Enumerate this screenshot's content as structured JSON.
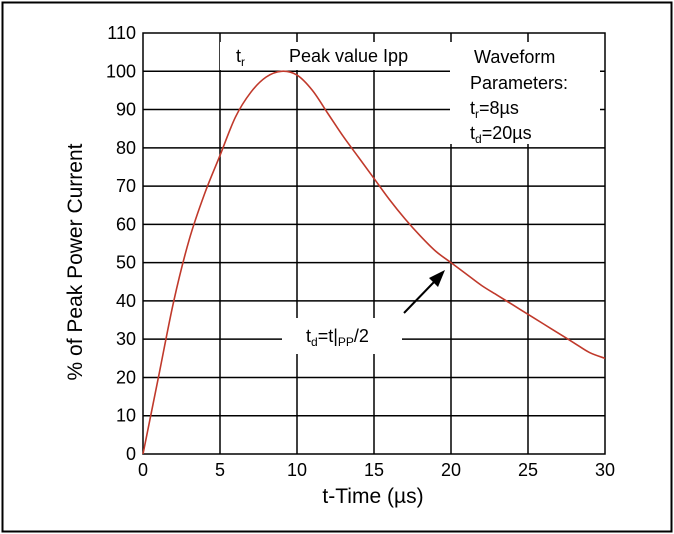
{
  "chart_data": {
    "type": "line",
    "title": "",
    "xlabel": "t-Time (µs)",
    "ylabel": "% of Peak Power Current",
    "xlim": [
      0,
      30
    ],
    "ylim": [
      0,
      110
    ],
    "x_ticks": [
      "0",
      "5",
      "10",
      "15",
      "20",
      "25",
      "30"
    ],
    "y_ticks": [
      "0",
      "10",
      "20",
      "30",
      "40",
      "50",
      "60",
      "70",
      "80",
      "90",
      "100",
      "110"
    ],
    "grid": true,
    "series": [
      {
        "name": "",
        "color": "#c0392b",
        "points": [
          [
            0,
            0
          ],
          [
            1,
            20
          ],
          [
            2,
            40
          ],
          [
            3,
            56
          ],
          [
            4,
            68
          ],
          [
            5,
            78
          ],
          [
            6,
            88
          ],
          [
            7,
            94.5
          ],
          [
            8,
            98.5
          ],
          [
            9,
            100
          ],
          [
            10,
            99
          ],
          [
            11,
            95
          ],
          [
            12,
            89
          ],
          [
            13,
            83
          ],
          [
            14,
            77.5
          ],
          [
            15,
            72
          ],
          [
            16,
            66.5
          ],
          [
            17,
            61.5
          ],
          [
            18,
            57
          ],
          [
            19,
            53
          ],
          [
            20,
            50
          ],
          [
            21,
            47
          ],
          [
            22,
            44
          ],
          [
            23,
            41.5
          ],
          [
            24,
            39
          ],
          [
            25,
            36.5
          ],
          [
            26,
            34
          ],
          [
            27,
            31.5
          ],
          [
            28,
            29
          ],
          [
            29,
            26.5
          ],
          [
            30,
            25
          ]
        ]
      }
    ],
    "annotations": {
      "tr": {
        "main": "t",
        "sub": "r"
      },
      "peak": "Peak value Ipp",
      "waveform_title_1": "Waveform",
      "waveform_title_2": "Parameters:",
      "param_tr": {
        "main": "t",
        "sub": "r",
        "rest": "=8µs"
      },
      "param_td": {
        "main": "t",
        "sub": "d",
        "rest": "=20µs"
      },
      "td_formula": {
        "main": "t",
        "sub": "d",
        "mid": "=t|",
        "sub2": "PP",
        "rest": "/2"
      }
    }
  }
}
